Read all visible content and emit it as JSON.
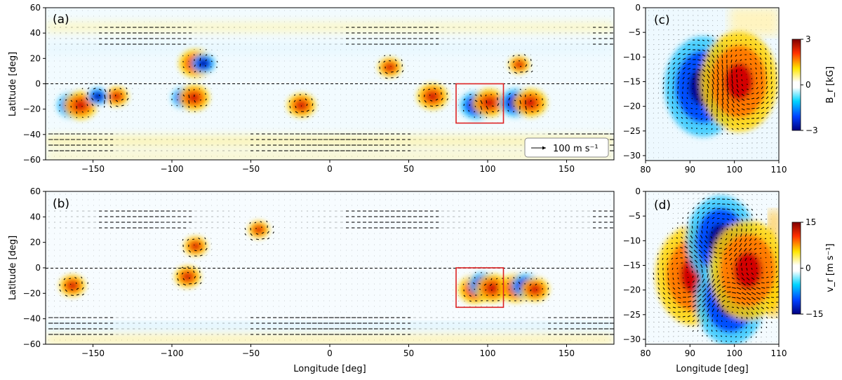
{
  "chart_data": [
    {
      "type": "heatmap",
      "panel": "(a)",
      "quantity": "B_r",
      "ylabel": "Latitude [deg]",
      "xlim": [
        -180,
        180
      ],
      "ylim": [
        -60,
        60
      ],
      "xticks": [
        "−150",
        "−100",
        "−50",
        "0",
        "50",
        "100",
        "150"
      ],
      "yticks": [
        "−60",
        "−40",
        "−20",
        "0",
        "20",
        "40",
        "60"
      ],
      "equator_line": "dashed at 0",
      "highlight_box": {
        "lon": [
          80,
          110
        ],
        "lat": [
          -31,
          0
        ],
        "color": "#dd2222"
      },
      "reference_vector": "100 m s⁻¹",
      "features": [
        {
          "lon": -163,
          "lat": -17,
          "sign": -1,
          "amp": 0.9
        },
        {
          "lon": -158,
          "lat": -17,
          "sign": 1,
          "amp": 1.0
        },
        {
          "lon": -135,
          "lat": -10,
          "sign": 1,
          "amp": 0.6
        },
        {
          "lon": -147,
          "lat": -10,
          "sign": -1,
          "amp": 0.5
        },
        {
          "lon": -92,
          "lat": -11,
          "sign": -1,
          "amp": 0.7
        },
        {
          "lon": -86,
          "lat": -11,
          "sign": 1,
          "amp": 0.9
        },
        {
          "lon": -85,
          "lat": 16,
          "sign": 1,
          "amp": 1.0
        },
        {
          "lon": -80,
          "lat": 16,
          "sign": -1,
          "amp": 0.6
        },
        {
          "lon": -18,
          "lat": -17,
          "sign": 1,
          "amp": 0.8
        },
        {
          "lon": 65,
          "lat": -10,
          "sign": 1,
          "amp": 0.9
        },
        {
          "lon": 93,
          "lat": -17,
          "sign": -1,
          "amp": 1.0
        },
        {
          "lon": 101,
          "lat": -15,
          "sign": 1,
          "amp": 1.0
        },
        {
          "lon": 118,
          "lat": -15,
          "sign": -1,
          "amp": 1.0
        },
        {
          "lon": 127,
          "lat": -15,
          "sign": 1,
          "amp": 1.0
        },
        {
          "lon": 38,
          "lat": 13,
          "sign": 1,
          "amp": 0.6
        },
        {
          "lon": 120,
          "lat": 15,
          "sign": 1,
          "amp": 0.5
        }
      ]
    },
    {
      "type": "heatmap",
      "panel": "(b)",
      "quantity": "v_r",
      "xlabel": "Longitude [deg]",
      "ylabel": "Latitude [deg]",
      "xlim": [
        -180,
        180
      ],
      "ylim": [
        -60,
        60
      ],
      "xticks": [
        "−150",
        "−100",
        "−50",
        "0",
        "50",
        "100",
        "150"
      ],
      "yticks": [
        "−60",
        "−40",
        "−20",
        "0",
        "20",
        "40",
        "60"
      ],
      "equator_line": "dashed at 0",
      "highlight_box": {
        "lon": [
          80,
          110
        ],
        "lat": [
          -31,
          0
        ],
        "color": "#dd2222"
      },
      "features": [
        {
          "lon": -163,
          "lat": -14,
          "sign": 1,
          "amp": 0.7
        },
        {
          "lon": -90,
          "lat": -7,
          "sign": 1,
          "amp": 0.7
        },
        {
          "lon": -85,
          "lat": 17,
          "sign": 1,
          "amp": 0.6
        },
        {
          "lon": -45,
          "lat": 30,
          "sign": 1,
          "amp": 0.5
        },
        {
          "lon": 92,
          "lat": -17,
          "sign": 1,
          "amp": 1.0
        },
        {
          "lon": 97,
          "lat": -13,
          "sign": -1,
          "amp": 0.8
        },
        {
          "lon": 103,
          "lat": -16,
          "sign": 1,
          "amp": 1.0
        },
        {
          "lon": 118,
          "lat": -16,
          "sign": 1,
          "amp": 1.0
        },
        {
          "lon": 124,
          "lat": -14,
          "sign": -1,
          "amp": 0.8
        },
        {
          "lon": 130,
          "lat": -17,
          "sign": 1,
          "amp": 0.8
        }
      ]
    },
    {
      "type": "heatmap",
      "panel": "(c)",
      "quantity": "B_r",
      "xlim": [
        80,
        110
      ],
      "ylim": [
        -31,
        0
      ],
      "xticks": [
        "80",
        "90",
        "100",
        "110"
      ],
      "yticks": [
        "0",
        "−5",
        "−10",
        "−15",
        "−20",
        "−25",
        "−30"
      ],
      "colorbar": {
        "label": "B_r [kG]",
        "ticks": [
          "3",
          "0",
          "−3"
        ],
        "range": [
          -3,
          3
        ]
      },
      "features": [
        {
          "lon": 93,
          "lat": -16,
          "sign": -1,
          "amp": 1.0
        },
        {
          "lon": 101,
          "lat": -15,
          "sign": 1,
          "amp": 1.0
        }
      ]
    },
    {
      "type": "heatmap",
      "panel": "(d)",
      "quantity": "v_r",
      "xlabel": "Longitude [deg]",
      "xlim": [
        80,
        110
      ],
      "ylim": [
        -31,
        0
      ],
      "xticks": [
        "80",
        "90",
        "100",
        "110"
      ],
      "yticks": [
        "0",
        "−5",
        "−10",
        "−15",
        "−20",
        "−25",
        "−30"
      ],
      "colorbar": {
        "label": "v_r [m s⁻¹]",
        "ticks": [
          "15",
          "0",
          "−15"
        ],
        "range": [
          -15,
          15
        ]
      },
      "features": [
        {
          "lon": 91,
          "lat": -17,
          "sign": 1,
          "amp": 1.0
        },
        {
          "lon": 97,
          "lat": -10,
          "sign": -1,
          "amp": 0.9
        },
        {
          "lon": 99,
          "lat": -22,
          "sign": -1,
          "amp": 0.9
        },
        {
          "lon": 103,
          "lat": -16,
          "sign": 1,
          "amp": 1.0
        }
      ]
    }
  ],
  "labels": {
    "a": "(a)",
    "b": "(b)",
    "c": "(c)",
    "d": "(d)",
    "ylabel": "Latitude [deg]",
    "xlabel": "Longitude [deg]",
    "ref_vector": "100 m s⁻¹",
    "cbar_c_label": "B_r [kG]",
    "cbar_d_label": "v_r [m s⁻¹]"
  }
}
